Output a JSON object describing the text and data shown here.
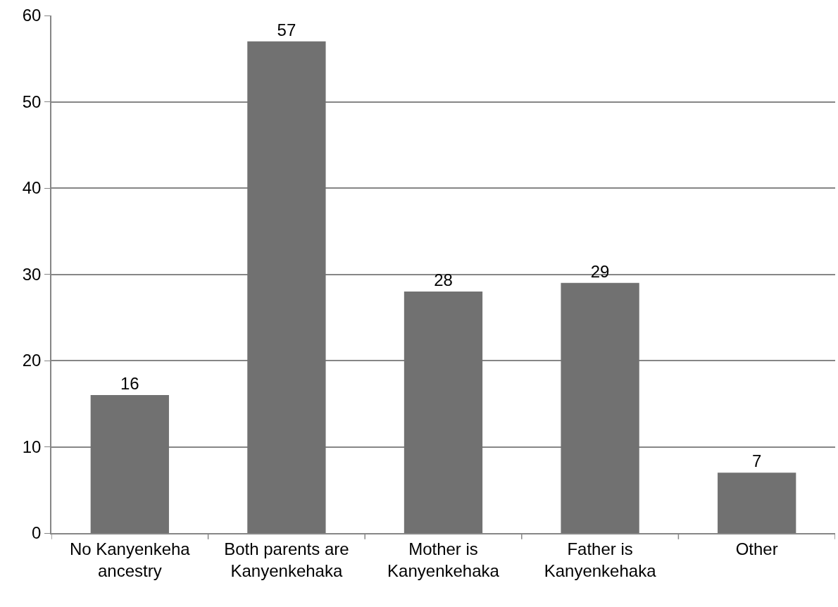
{
  "chart_data": {
    "type": "bar",
    "categories": [
      "No Kanyenkeha ancestry",
      "Both parents are Kanyenkehaka",
      "Mother is Kanyenkehaka",
      "Father is Kanyenkehaka",
      "Other"
    ],
    "values": [
      16,
      57,
      28,
      29,
      7
    ],
    "color": "#717171",
    "ylim": [
      0,
      60
    ],
    "yticks": [
      0,
      10,
      20,
      30,
      40,
      50,
      60
    ],
    "grid": "y",
    "data_labels": true
  }
}
